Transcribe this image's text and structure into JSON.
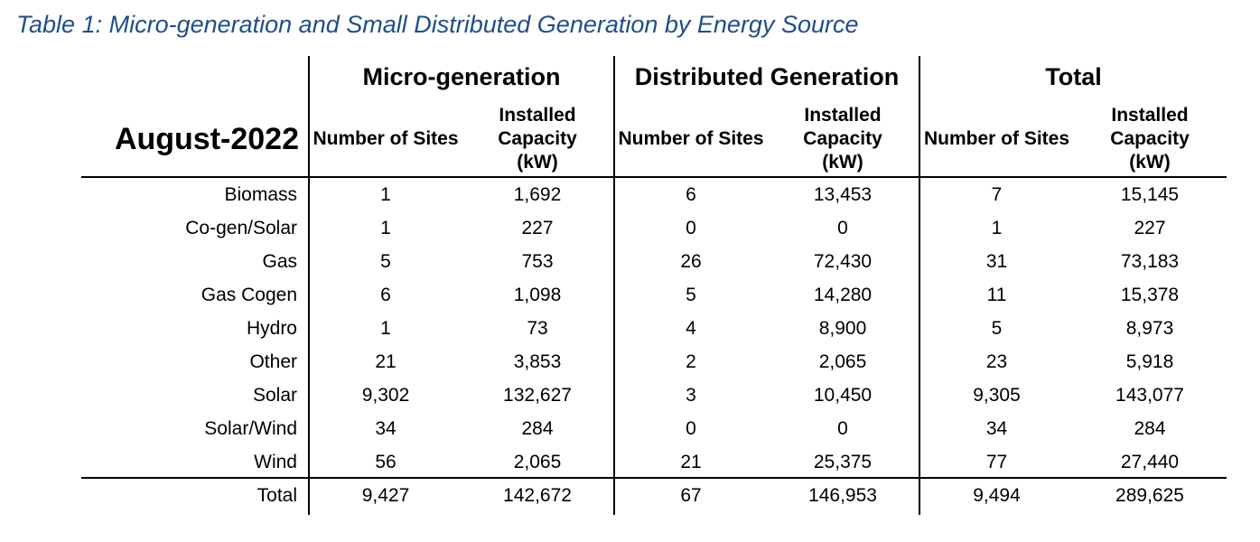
{
  "caption": "Table 1: Micro-generation and Small Distributed Generation by Energy Source",
  "stub_header": "August-2022",
  "groups": [
    "Micro-generation",
    "Distributed Generation",
    "Total"
  ],
  "sub_headers": [
    "Number of Sites",
    "Installed Capacity (kW)"
  ],
  "rows": [
    {
      "label": "Biomass",
      "values": [
        "1",
        "1,692",
        "6",
        "13,453",
        "7",
        "15,145"
      ]
    },
    {
      "label": "Co-gen/Solar",
      "values": [
        "1",
        "227",
        "0",
        "0",
        "1",
        "227"
      ]
    },
    {
      "label": "Gas",
      "values": [
        "5",
        "753",
        "26",
        "72,430",
        "31",
        "73,183"
      ]
    },
    {
      "label": "Gas Cogen",
      "values": [
        "6",
        "1,098",
        "5",
        "14,280",
        "11",
        "15,378"
      ]
    },
    {
      "label": "Hydro",
      "values": [
        "1",
        "73",
        "4",
        "8,900",
        "5",
        "8,973"
      ]
    },
    {
      "label": "Other",
      "values": [
        "21",
        "3,853",
        "2",
        "2,065",
        "23",
        "5,918"
      ]
    },
    {
      "label": "Solar",
      "values": [
        "9,302",
        "132,627",
        "3",
        "10,450",
        "9,305",
        "143,077"
      ]
    },
    {
      "label": "Solar/Wind",
      "values": [
        "34",
        "284",
        "0",
        "0",
        "34",
        "284"
      ]
    },
    {
      "label": "Wind",
      "values": [
        "56",
        "2,065",
        "21",
        "25,375",
        "77",
        "27,440"
      ]
    }
  ],
  "total_row": {
    "label": "Total",
    "values": [
      "9,427",
      "142,672",
      "67",
      "146,953",
      "9,494",
      "289,625"
    ]
  }
}
